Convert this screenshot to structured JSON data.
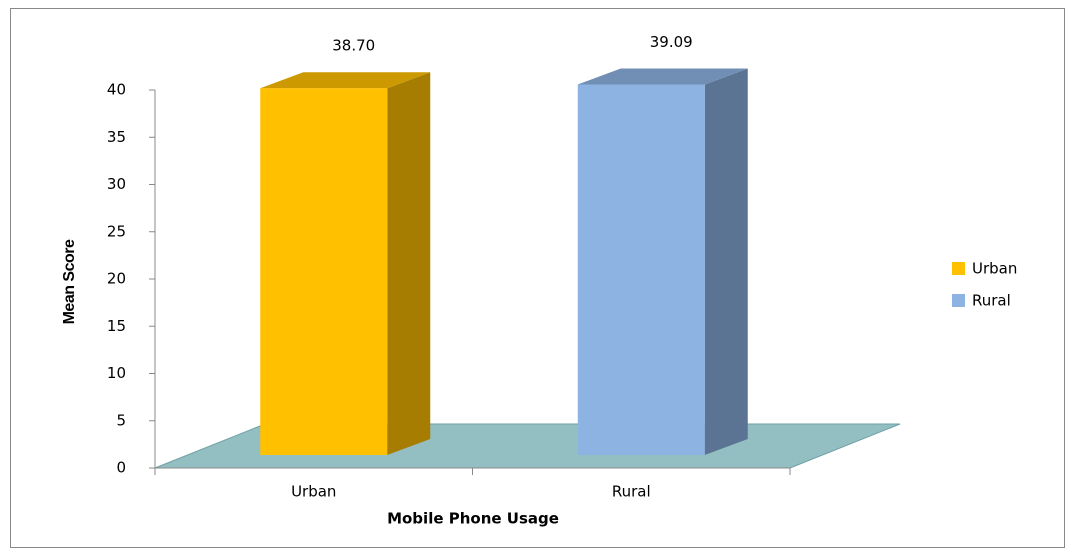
{
  "chart_data": {
    "type": "bar3d",
    "categories": [
      "Urban",
      "Rural"
    ],
    "values": [
      38.7,
      39.09
    ],
    "value_labels": [
      "38.70",
      "39.09"
    ],
    "colors": [
      "#ffc000",
      "#8db3e2"
    ],
    "x_label": "Mobile Phone Usage",
    "y_label": "Mean Score",
    "ylim": [
      0,
      40
    ],
    "yticks": [
      0,
      5,
      10,
      15,
      20,
      25,
      30,
      35,
      40
    ],
    "legend": "right"
  }
}
